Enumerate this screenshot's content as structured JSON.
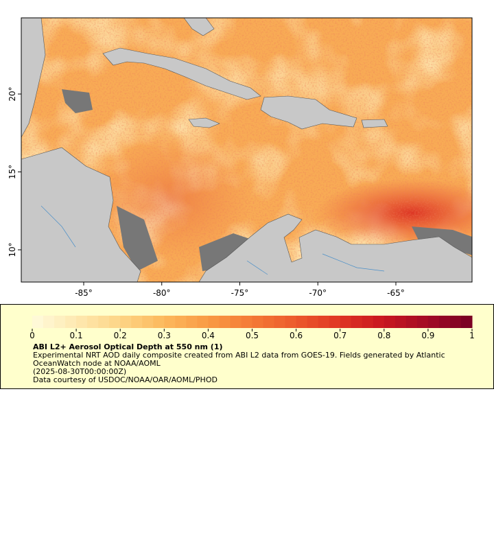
{
  "map": {
    "xlim": [
      -89,
      -60.12
    ],
    "ylim": [
      7.93,
      24.89
    ],
    "xticks": [
      {
        "value": -85,
        "label": "-85°"
      },
      {
        "value": -80,
        "label": "-80°"
      },
      {
        "value": -75,
        "label": "-75°"
      },
      {
        "value": -70,
        "label": "-70°"
      },
      {
        "value": -65,
        "label": "-65°"
      }
    ],
    "yticks": [
      {
        "value": 10,
        "label": "10°"
      },
      {
        "value": 15,
        "label": "15°"
      },
      {
        "value": 20,
        "label": "20°"
      }
    ]
  },
  "colorbar": {
    "lim": [
      0,
      1
    ],
    "ticks": [
      0,
      0.1,
      0.2,
      0.3,
      0.4,
      0.5,
      0.6,
      0.7,
      0.8,
      0.9,
      1
    ],
    "colors": [
      "#fffbdc",
      "#fee9b0",
      "#fdd486",
      "#fcb85c",
      "#f99a44",
      "#f47a36",
      "#ec5a2c",
      "#df3524",
      "#c8161f",
      "#a20a26",
      "#760022"
    ],
    "steps": 40
  },
  "legend": {
    "title": "ABI L2+ Aerosol Optical Depth at 550 nm (1)",
    "description": "Experimental NRT AOD daily composite created from ABI L2 data from GOES-19. Fields generated by Atlantic OceanWatch node at NOAA/AOML",
    "time": "(2025-08-30T00:00:00Z)",
    "credit": "Data courtesy of USDOC/NOAA/OAR/AOML/PHOD"
  }
}
